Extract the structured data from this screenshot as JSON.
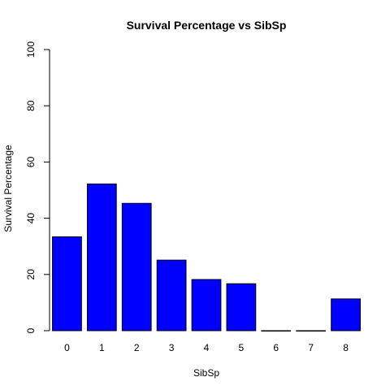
{
  "chart_data": {
    "type": "bar",
    "title": "Survival Percentage vs SibSp",
    "xlabel": "SibSp",
    "ylabel": "Survival Percentage",
    "categories": [
      "0",
      "1",
      "2",
      "3",
      "4",
      "5",
      "6",
      "7",
      "8"
    ],
    "values": [
      33.4,
      52.2,
      45.3,
      25.1,
      18.2,
      16.7,
      0,
      0,
      11.3
    ],
    "ylim": [
      0,
      100
    ],
    "yticks": [
      "0",
      "20",
      "40",
      "60",
      "80",
      "100"
    ],
    "bar_color": "#0000ff",
    "bar_border_color": "#000000",
    "grid": false,
    "legend": false
  }
}
